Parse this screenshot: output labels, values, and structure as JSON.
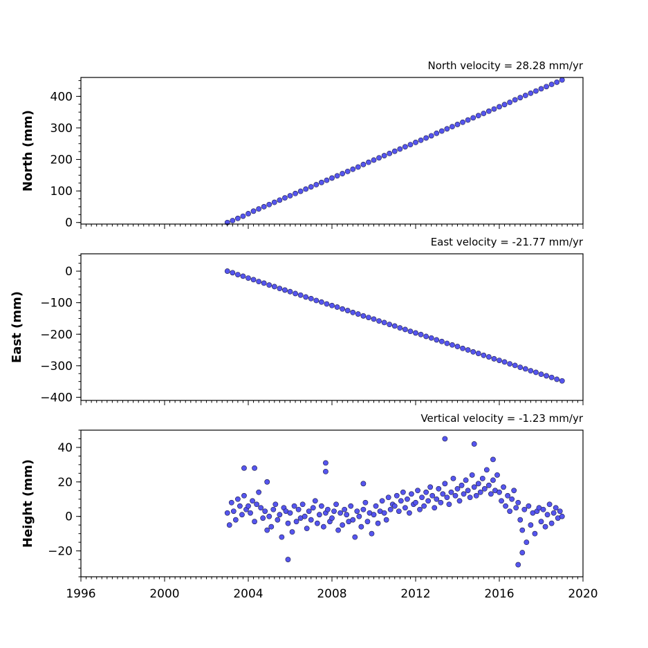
{
  "chart_data": [
    {
      "type": "scatter",
      "title": "North velocity = 28.28 mm/yr",
      "ylabel": "North (mm)",
      "xlabel": "",
      "xlim": [
        1996,
        2020
      ],
      "ylim": [
        -5,
        460
      ],
      "yticks": [
        0,
        100,
        200,
        300,
        400
      ],
      "ytick_labels": [
        "0",
        "100",
        "200",
        "300",
        "400"
      ],
      "xticks": [
        1996,
        2000,
        2004,
        2008,
        2012,
        2016,
        2020
      ],
      "xtick_labels": [],
      "grid": false,
      "series": [
        {
          "color": "#5555ee",
          "x": [
            2003.0,
            2003.25,
            2003.5,
            2003.75,
            2004.0,
            2004.25,
            2004.5,
            2004.75,
            2005.0,
            2005.25,
            2005.5,
            2005.75,
            2006.0,
            2006.25,
            2006.5,
            2006.75,
            2007.0,
            2007.25,
            2007.5,
            2007.75,
            2008.0,
            2008.25,
            2008.5,
            2008.75,
            2009.0,
            2009.25,
            2009.5,
            2009.75,
            2010.0,
            2010.25,
            2010.5,
            2010.75,
            2011.0,
            2011.25,
            2011.5,
            2011.75,
            2012.0,
            2012.25,
            2012.5,
            2012.75,
            2013.0,
            2013.25,
            2013.5,
            2013.75,
            2014.0,
            2014.25,
            2014.5,
            2014.75,
            2015.0,
            2015.25,
            2015.5,
            2015.75,
            2016.0,
            2016.25,
            2016.5,
            2016.75,
            2017.0,
            2017.25,
            2017.5,
            2017.75,
            2018.0,
            2018.25,
            2018.5,
            2018.75,
            2019.0
          ],
          "y": [
            0,
            6,
            13,
            20,
            28,
            36,
            43,
            50,
            57,
            64,
            71,
            78,
            85,
            92,
            99,
            106,
            113,
            120,
            127,
            134,
            141,
            148,
            155,
            162,
            169,
            176,
            184,
            191,
            198,
            205,
            212,
            219,
            226,
            233,
            240,
            247,
            254,
            261,
            268,
            275,
            283,
            290,
            297,
            304,
            311,
            318,
            325,
            332,
            339,
            346,
            353,
            360,
            367,
            374,
            381,
            389,
            396,
            403,
            410,
            417,
            424,
            431,
            438,
            445,
            452
          ]
        }
      ]
    },
    {
      "type": "scatter",
      "title": "East velocity = -21.77 mm/yr",
      "ylabel": "East (mm)",
      "xlabel": "",
      "xlim": [
        1996,
        2020
      ],
      "ylim": [
        -410,
        55
      ],
      "yticks": [
        0,
        -100,
        -200,
        -300,
        -400
      ],
      "ytick_labels": [
        "0",
        "−100",
        "−200",
        "−300",
        "−400"
      ],
      "xticks": [
        1996,
        2000,
        2004,
        2008,
        2012,
        2016,
        2020
      ],
      "xtick_labels": [],
      "grid": false,
      "series": [
        {
          "color": "#5555ee",
          "x": [
            2003.0,
            2003.25,
            2003.5,
            2003.75,
            2004.0,
            2004.25,
            2004.5,
            2004.75,
            2005.0,
            2005.25,
            2005.5,
            2005.75,
            2006.0,
            2006.25,
            2006.5,
            2006.75,
            2007.0,
            2007.25,
            2007.5,
            2007.75,
            2008.0,
            2008.25,
            2008.5,
            2008.75,
            2009.0,
            2009.25,
            2009.5,
            2009.75,
            2010.0,
            2010.25,
            2010.5,
            2010.75,
            2011.0,
            2011.25,
            2011.5,
            2011.75,
            2012.0,
            2012.25,
            2012.5,
            2012.75,
            2013.0,
            2013.25,
            2013.5,
            2013.75,
            2014.0,
            2014.25,
            2014.5,
            2014.75,
            2015.0,
            2015.25,
            2015.5,
            2015.75,
            2016.0,
            2016.25,
            2016.5,
            2016.75,
            2017.0,
            2017.25,
            2017.5,
            2017.75,
            2018.0,
            2018.25,
            2018.5,
            2018.75,
            2019.0
          ],
          "y": [
            0,
            -5,
            -11,
            -16,
            -22,
            -27,
            -33,
            -38,
            -44,
            -49,
            -55,
            -60,
            -65,
            -71,
            -76,
            -82,
            -87,
            -93,
            -98,
            -104,
            -109,
            -114,
            -120,
            -125,
            -131,
            -136,
            -142,
            -147,
            -152,
            -158,
            -163,
            -169,
            -174,
            -180,
            -185,
            -191,
            -196,
            -201,
            -207,
            -212,
            -218,
            -223,
            -229,
            -234,
            -239,
            -245,
            -250,
            -256,
            -261,
            -267,
            -272,
            -278,
            -283,
            -288,
            -294,
            -299,
            -305,
            -310,
            -316,
            -321,
            -327,
            -332,
            -337,
            -343,
            -348
          ]
        }
      ]
    },
    {
      "type": "scatter",
      "title": "Vertical velocity = -1.23 mm/yr",
      "ylabel": "Height (mm)",
      "xlabel": "",
      "xlim": [
        1996,
        2020
      ],
      "ylim": [
        -35,
        50
      ],
      "yticks": [
        40,
        20,
        0,
        -20
      ],
      "ytick_labels": [
        "40",
        "20",
        "0",
        "−20"
      ],
      "xticks": [
        1996,
        2000,
        2004,
        2008,
        2012,
        2016,
        2020
      ],
      "xtick_labels": [
        "1996",
        "2000",
        "2004",
        "2008",
        "2012",
        "2016",
        "2020"
      ],
      "grid": false,
      "series": [
        {
          "color": "#5555ee",
          "x": [
            2003.0,
            2003.1,
            2003.2,
            2003.3,
            2003.4,
            2003.5,
            2003.6,
            2003.7,
            2003.8,
            2003.9,
            2004.0,
            2004.1,
            2004.2,
            2004.3,
            2004.4,
            2004.5,
            2004.6,
            2004.7,
            2004.8,
            2004.9,
            2005.0,
            2005.1,
            2005.2,
            2005.3,
            2005.4,
            2005.5,
            2005.6,
            2005.7,
            2005.8,
            2005.9,
            2006.0,
            2006.1,
            2006.2,
            2006.3,
            2006.4,
            2006.5,
            2006.6,
            2006.7,
            2006.8,
            2006.9,
            2007.0,
            2007.1,
            2007.2,
            2007.3,
            2007.4,
            2007.5,
            2007.6,
            2007.7,
            2007.8,
            2007.9,
            2008.0,
            2008.1,
            2008.2,
            2008.3,
            2008.4,
            2008.5,
            2008.6,
            2008.7,
            2008.8,
            2008.9,
            2009.0,
            2009.1,
            2009.2,
            2009.3,
            2009.4,
            2009.5,
            2009.6,
            2009.7,
            2009.8,
            2009.9,
            2010.0,
            2010.1,
            2010.2,
            2010.3,
            2010.4,
            2010.5,
            2010.6,
            2010.7,
            2010.8,
            2010.9,
            2011.0,
            2011.1,
            2011.2,
            2011.3,
            2011.4,
            2011.5,
            2011.6,
            2011.7,
            2011.8,
            2011.9,
            2012.0,
            2012.1,
            2012.2,
            2012.3,
            2012.4,
            2012.5,
            2012.6,
            2012.7,
            2012.8,
            2012.9,
            2013.0,
            2013.1,
            2013.2,
            2013.3,
            2013.4,
            2013.5,
            2013.6,
            2013.7,
            2013.8,
            2013.9,
            2014.0,
            2014.1,
            2014.2,
            2014.3,
            2014.4,
            2014.5,
            2014.6,
            2014.7,
            2014.8,
            2014.9,
            2015.0,
            2015.1,
            2015.2,
            2015.3,
            2015.4,
            2015.5,
            2015.6,
            2015.7,
            2015.8,
            2015.9,
            2016.0,
            2016.1,
            2016.2,
            2016.3,
            2016.4,
            2016.5,
            2016.6,
            2016.7,
            2016.8,
            2016.9,
            2017.0,
            2017.1,
            2017.2,
            2017.3,
            2017.4,
            2017.5,
            2017.6,
            2017.7,
            2017.8,
            2017.9,
            2018.0,
            2018.1,
            2018.2,
            2018.3,
            2018.4,
            2018.5,
            2018.6,
            2018.7,
            2018.8,
            2018.9,
            2019.0,
            2003.8,
            2004.3,
            2004.9,
            2005.9,
            2007.7,
            2007.7,
            2009.5,
            2013.4,
            2014.8,
            2015.7,
            2016.9,
            2017.1
          ],
          "y": [
            2,
            -5,
            8,
            3,
            -2,
            10,
            6,
            1,
            12,
            4,
            6,
            2,
            9,
            -3,
            7,
            14,
            5,
            -1,
            3,
            -8,
            0,
            -6,
            4,
            7,
            -2,
            1,
            -12,
            5,
            3,
            -4,
            2,
            -9,
            6,
            -3,
            4,
            -1,
            7,
            0,
            -7,
            3,
            -2,
            5,
            9,
            -4,
            1,
            6,
            -6,
            2,
            4,
            -3,
            -1,
            3,
            7,
            -8,
            2,
            -5,
            4,
            1,
            -3,
            6,
            -2,
            -12,
            3,
            0,
            -6,
            4,
            8,
            -3,
            2,
            -10,
            1,
            6,
            -4,
            3,
            9,
            2,
            -2,
            11,
            4,
            7,
            6,
            12,
            3,
            9,
            14,
            5,
            10,
            2,
            13,
            7,
            8,
            15,
            4,
            11,
            6,
            14,
            9,
            17,
            12,
            5,
            10,
            16,
            8,
            13,
            19,
            11,
            7,
            14,
            22,
            12,
            16,
            9,
            18,
            13,
            21,
            15,
            11,
            24,
            17,
            12,
            19,
            14,
            22,
            16,
            27,
            18,
            13,
            21,
            15,
            24,
            14,
            9,
            17,
            6,
            12,
            3,
            10,
            15,
            5,
            8,
            -2,
            -8,
            4,
            -15,
            6,
            -5,
            2,
            -10,
            3,
            5,
            -3,
            4,
            -6,
            1,
            7,
            -4,
            2,
            5,
            -1,
            3,
            0,
            28,
            28,
            20,
            -25,
            31,
            26,
            19,
            45,
            42,
            33,
            -28,
            -21
          ]
        }
      ]
    }
  ]
}
